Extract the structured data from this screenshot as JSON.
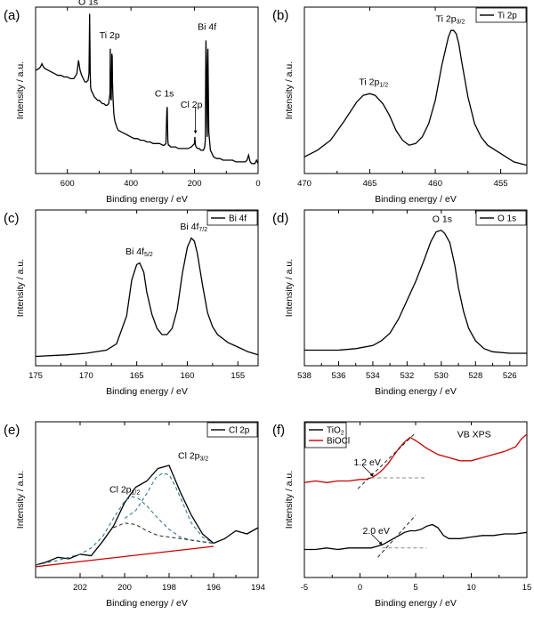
{
  "colors": {
    "black": "#000000",
    "red": "#cc0000",
    "teal": "#1f6f80",
    "gray": "#8a8a8a",
    "dashblack": "#222222"
  },
  "chart_data": [
    {
      "id": "a",
      "letter": "(a)",
      "type": "line",
      "xlabel": "Binding energy / eV",
      "ylabel": "Intensity / a.u.",
      "xlim": [
        700,
        0
      ],
      "xticks": [
        600,
        400,
        200,
        0
      ],
      "ylim": [
        0,
        100
      ],
      "legend": null,
      "series": [
        {
          "color": "black",
          "dash": false,
          "x": [
            700,
            690,
            685,
            680,
            675,
            670,
            660,
            650,
            640,
            630,
            620,
            610,
            600,
            590,
            580,
            570,
            565,
            560,
            555,
            550,
            545,
            540,
            535,
            532,
            531,
            530,
            529,
            528,
            527,
            525,
            520,
            515,
            510,
            505,
            500,
            495,
            490,
            485,
            480,
            475,
            470,
            466,
            465,
            464,
            463,
            462,
            461,
            460,
            459,
            458,
            457,
            456,
            455,
            454,
            452,
            450,
            445,
            440,
            430,
            420,
            410,
            400,
            390,
            380,
            370,
            360,
            350,
            340,
            330,
            320,
            310,
            300,
            295,
            290,
            287,
            286,
            285,
            284,
            283,
            282,
            280,
            275,
            270,
            265,
            260,
            250,
            240,
            230,
            220,
            210,
            205,
            200,
            199,
            198,
            197,
            195,
            190,
            185,
            180,
            175,
            172,
            170,
            168,
            166,
            165,
            164,
            163,
            162,
            161,
            160,
            159,
            158,
            157,
            155,
            150,
            140,
            130,
            120,
            110,
            100,
            90,
            80,
            70,
            60,
            50,
            45,
            40,
            35,
            30,
            25,
            20,
            15,
            10,
            5,
            0
          ],
          "y": [
            62,
            63,
            64,
            66,
            64,
            63,
            62,
            61,
            60,
            59,
            59,
            58,
            58,
            57,
            57,
            60,
            68,
            62,
            59,
            57,
            55,
            55,
            56,
            60,
            80,
            96,
            75,
            60,
            52,
            50,
            48,
            46,
            45,
            44,
            44,
            43,
            42,
            42,
            41,
            41,
            42,
            48,
            75,
            50,
            45,
            44,
            58,
            72,
            70,
            55,
            48,
            44,
            40,
            36,
            33,
            31,
            28,
            26,
            25,
            24,
            23,
            22,
            21,
            21,
            20,
            20,
            19,
            19,
            18,
            18,
            18,
            17,
            17,
            18,
            38,
            40,
            30,
            20,
            18,
            17,
            17,
            16,
            16,
            16,
            16,
            15,
            15,
            15,
            15,
            16,
            17,
            18,
            22,
            19,
            17,
            16,
            15,
            15,
            14,
            14,
            14,
            15,
            16,
            20,
            60,
            80,
            70,
            55,
            30,
            22,
            60,
            75,
            60,
            25,
            14,
            10,
            9,
            9,
            8,
            8,
            8,
            8,
            7,
            7,
            7,
            7,
            7,
            8,
            11,
            7,
            6,
            6,
            6,
            8,
            6
          ]
        }
      ],
      "annotations": [
        {
          "text": "O 1s",
          "x": 532,
          "y": 97,
          "dx": -12,
          "dy": -8
        },
        {
          "text": "Ti 2p",
          "x": 460,
          "y": 76,
          "dx": -14,
          "dy": -10
        },
        {
          "text": "C 1s",
          "x": 286,
          "y": 41,
          "dx": -14,
          "dy": -10
        },
        {
          "text": "Cl 2p",
          "x": 199,
          "y": 30,
          "dx": -16,
          "dy": -18
        },
        {
          "text": "Bi 4f",
          "x": 162,
          "y": 80,
          "dx": -10,
          "dy": -12
        }
      ],
      "arrows": [
        {
          "x1": 197,
          "y1": 40,
          "x2": 197,
          "y2": 24
        }
      ]
    },
    {
      "id": "b",
      "letter": "(b)",
      "type": "line",
      "xlabel": "Binding energy / eV",
      "ylabel": "Intensity / a.u.",
      "xlim": [
        470,
        453
      ],
      "xticks": [
        470,
        465,
        460,
        455
      ],
      "ylim": [
        0,
        100
      ],
      "legend": {
        "position": "top-right",
        "entries": [
          {
            "label": "Ti 2p",
            "color": "black"
          }
        ]
      },
      "series": [
        {
          "color": "black",
          "dash": false,
          "x": [
            470,
            469,
            468,
            467,
            466,
            465.5,
            465,
            464.6,
            464,
            463.5,
            463,
            462.5,
            462,
            461.5,
            461,
            460.5,
            460,
            459.5,
            459,
            458.8,
            458.6,
            458.4,
            458.2,
            458,
            457.5,
            457,
            456.5,
            456,
            455,
            454,
            453
          ],
          "y": [
            10,
            14,
            20,
            31,
            43,
            47,
            48,
            47,
            42,
            35,
            26,
            20,
            17,
            18,
            22,
            30,
            44,
            65,
            82,
            86,
            86,
            84,
            78,
            68,
            46,
            30,
            22,
            17,
            12,
            7,
            5
          ]
        }
      ],
      "annotations": [
        {
          "text": "Ti 2p1/2",
          "x": 464.6,
          "y": 50,
          "dx": -18,
          "dy": -6
        },
        {
          "text": "Ti 2p3/2",
          "x": 458.6,
          "y": 88,
          "dx": -20,
          "dy": -6
        }
      ]
    },
    {
      "id": "c",
      "letter": "(c)",
      "type": "line",
      "xlabel": "Binding energy / eV",
      "ylabel": "Intensity / a.u.",
      "xlim": [
        175,
        153
      ],
      "xticks": [
        175,
        170,
        165,
        160,
        155
      ],
      "ylim": [
        0,
        100
      ],
      "legend": {
        "position": "top-right",
        "entries": [
          {
            "label": "Bi 4f",
            "color": "black"
          }
        ]
      },
      "series": [
        {
          "color": "black",
          "dash": false,
          "x": [
            175,
            172,
            170,
            168,
            167,
            166,
            165.5,
            165,
            164.7,
            164.3,
            164,
            163.5,
            163,
            162.5,
            162,
            161.5,
            161,
            160.5,
            160,
            159.6,
            159.3,
            159,
            158.5,
            158,
            157.5,
            157,
            156,
            155,
            154,
            153
          ],
          "y": [
            6,
            7,
            8,
            10,
            14,
            32,
            55,
            65,
            66,
            60,
            47,
            33,
            24,
            20,
            20,
            24,
            36,
            59,
            76,
            82,
            80,
            72,
            52,
            34,
            25,
            20,
            15,
            12,
            9,
            7
          ]
        }
      ],
      "annotations": [
        {
          "text": "Bi 4f5/2",
          "x": 164.7,
          "y": 68,
          "dx": -16,
          "dy": -6
        },
        {
          "text": "Bi 4f7/2",
          "x": 159.3,
          "y": 84,
          "dx": -16,
          "dy": -6
        }
      ]
    },
    {
      "id": "d",
      "letter": "(d)",
      "type": "line",
      "xlabel": "Binding energy / eV",
      "ylabel": "Intensity / a.u.",
      "xlim": [
        538,
        525
      ],
      "xticks": [
        538,
        536,
        534,
        532,
        530,
        528,
        526
      ],
      "ylim": [
        0,
        100
      ],
      "legend": {
        "position": "top-right",
        "entries": [
          {
            "label": "O 1s",
            "color": "black"
          }
        ]
      },
      "series": [
        {
          "color": "black",
          "dash": false,
          "x": [
            538,
            537,
            536,
            535,
            534,
            533.5,
            533,
            532.5,
            532,
            531.5,
            531,
            530.6,
            530.3,
            530,
            529.8,
            529.5,
            529.2,
            529,
            528.7,
            528.4,
            528,
            527.5,
            527,
            526,
            525
          ],
          "y": [
            10,
            10,
            10,
            11,
            13,
            16,
            21,
            30,
            42,
            54,
            68,
            80,
            86,
            87,
            85,
            79,
            64,
            50,
            35,
            24,
            16,
            11,
            9,
            8,
            8
          ]
        }
      ],
      "annotations": [
        {
          "text": "O 1s",
          "x": 529.9,
          "y": 89,
          "dx": -12,
          "dy": -6
        }
      ]
    },
    {
      "id": "e",
      "letter": "(e)",
      "type": "line",
      "xlabel": "Binding energy / eV",
      "ylabel": "Intensity / a.u.",
      "xlim": [
        204,
        194
      ],
      "xticks": [
        202,
        200,
        198,
        196,
        194
      ],
      "ylim": [
        0,
        100
      ],
      "legend": {
        "position": "top-right",
        "entries": [
          {
            "label": "Cl 2p",
            "color": "black"
          }
        ]
      },
      "series": [
        {
          "color": "black",
          "dash": false,
          "x": [
            204,
            203.5,
            203,
            202.5,
            202,
            201.5,
            201,
            200.5,
            200,
            199.5,
            199,
            198.5,
            198,
            197.5,
            197,
            196.5,
            196,
            195.5,
            195,
            194.5,
            194
          ],
          "y": [
            8,
            10,
            13,
            12,
            15,
            14,
            23,
            33,
            48,
            58,
            62,
            70,
            72,
            55,
            40,
            28,
            22,
            25,
            30,
            28,
            32
          ]
        },
        {
          "color": "teal",
          "dash": true,
          "x": [
            204,
            203,
            202,
            201.5,
            201,
            200.5,
            200,
            199.7,
            199.4,
            199,
            198.5,
            198,
            197.5,
            197,
            196.5,
            196
          ],
          "y": [
            8,
            11,
            15,
            19,
            26,
            38,
            49,
            52,
            51,
            46,
            38,
            31,
            26,
            24,
            23,
            22
          ]
        },
        {
          "color": "teal",
          "dash": true,
          "x": [
            200,
            199.5,
            199,
            198.6,
            198.3,
            198,
            197.7,
            197.3,
            197,
            196.5,
            196
          ],
          "y": [
            38,
            43,
            54,
            64,
            67,
            66,
            58,
            45,
            35,
            26,
            22
          ]
        },
        {
          "color": "dashblack",
          "dash": true,
          "x": [
            200.5,
            200,
            199.5,
            199,
            198.5,
            198,
            197.5,
            197,
            196.5,
            196
          ],
          "y": [
            32,
            35,
            34,
            30,
            27,
            26,
            25,
            24,
            23,
            22
          ]
        },
        {
          "color": "red",
          "dash": false,
          "x": [
            204,
            196
          ],
          "y": [
            7,
            20
          ]
        }
      ],
      "annotations": [
        {
          "text": "Cl 2p1/2",
          "x": 199.8,
          "y": 50,
          "dx": -22,
          "dy": -8
        },
        {
          "text": "Cl 2p3/2",
          "x": 197.6,
          "y": 73,
          "dx": 0,
          "dy": -6
        }
      ]
    },
    {
      "id": "f",
      "letter": "(f)",
      "type": "line",
      "xlabel": "Binding energy / eV",
      "ylabel": "Intensity / a.u.",
      "xlim": [
        -5,
        15
      ],
      "xticks": [
        -5,
        0,
        5,
        10,
        15
      ],
      "ylim": [
        0,
        100
      ],
      "legend": {
        "position": "top-left",
        "entries": [
          {
            "label": "TiO2",
            "color": "black"
          },
          {
            "label": "BiOCl",
            "color": "red"
          }
        ]
      },
      "title_text": "VB XPS",
      "series": [
        {
          "color": "red",
          "dash": false,
          "x": [
            -5,
            -4,
            -3,
            -2,
            -1,
            0,
            0.5,
            1,
            1.5,
            2,
            2.5,
            3,
            3.5,
            4,
            4.5,
            5,
            6,
            7,
            8,
            9,
            10,
            11,
            12,
            13,
            14,
            14.5,
            15
          ],
          "y": [
            61,
            62,
            61,
            62,
            62,
            63,
            63,
            64,
            66,
            69,
            73,
            78,
            83,
            87,
            90,
            88,
            83,
            79,
            77,
            75,
            75,
            77,
            79,
            81,
            84,
            89,
            92
          ]
        },
        {
          "color": "black",
          "dash": false,
          "x": [
            -5,
            -4,
            -3,
            -2,
            -1,
            0,
            1,
            1.5,
            2,
            2.5,
            3,
            3.5,
            4,
            4.5,
            5,
            5.5,
            6,
            6.5,
            7,
            7.5,
            8,
            9,
            10,
            11,
            12,
            13,
            14,
            15
          ],
          "y": [
            18,
            18,
            19,
            18,
            19,
            19,
            19,
            20,
            21,
            23,
            25,
            27,
            29,
            30,
            30,
            31,
            33,
            34,
            32,
            27,
            25,
            25,
            26,
            27,
            27,
            28,
            28,
            29
          ]
        },
        {
          "color": "gray",
          "dash": true,
          "x": [
            1,
            6
          ],
          "y": [
            64,
            64
          ]
        },
        {
          "color": "dashblack",
          "dash": true,
          "x": [
            -0.2,
            5
          ],
          "y": [
            57,
            93
          ]
        },
        {
          "color": "gray",
          "dash": true,
          "x": [
            2,
            6
          ],
          "y": [
            19,
            19
          ]
        },
        {
          "color": "dashblack",
          "dash": true,
          "x": [
            1.6,
            5
          ],
          "y": [
            13,
            40
          ]
        }
      ],
      "annotations": [
        {
          "text": "1.2 eV",
          "x": 1.2,
          "y": 64,
          "dx": -22,
          "dy": -14
        },
        {
          "text": "2.0 eV",
          "x": 2.0,
          "y": 20,
          "dx": -22,
          "dy": -14
        },
        {
          "text": "VB XPS",
          "x": 10.5,
          "y": 90,
          "dx": -22,
          "dy": 0
        }
      ],
      "arrows": [
        {
          "x1": 0.2,
          "y1": 72,
          "x2": 1.2,
          "y2": 65
        },
        {
          "x1": 1.0,
          "y1": 28,
          "x2": 2.0,
          "y2": 21
        }
      ]
    }
  ]
}
